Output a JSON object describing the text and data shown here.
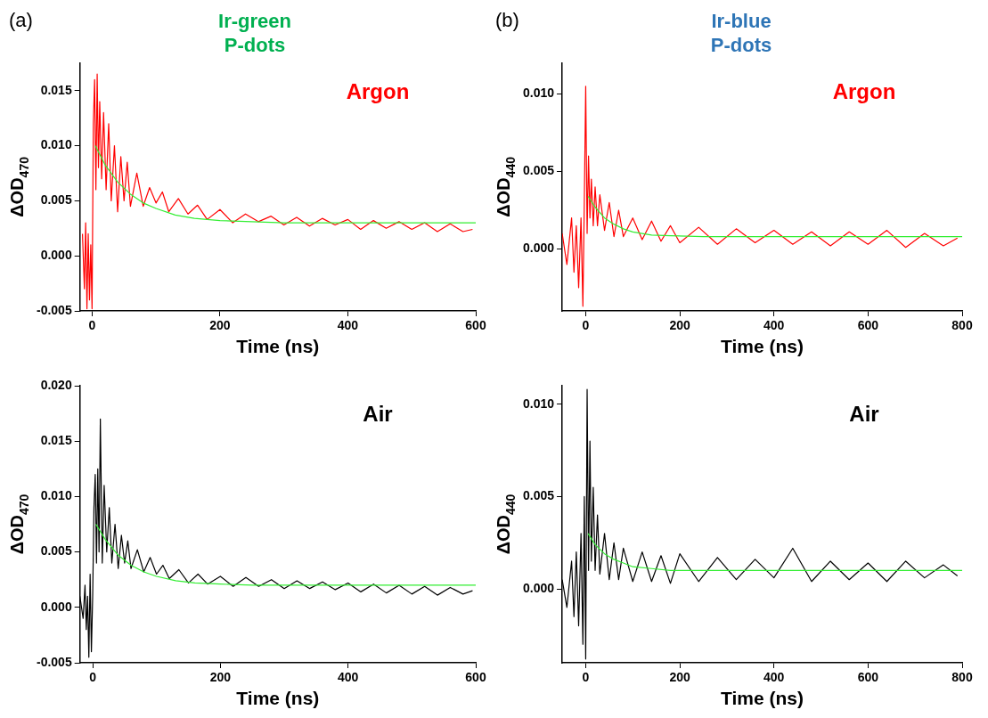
{
  "chart_data": [
    {
      "type": "line",
      "title": "Ir-green\nP-dots",
      "xlabel": "Time (ns)",
      "ylabel": "ΔOD$_{470}$",
      "annotations": [
        "(a)",
        "Argon"
      ],
      "marker": "none",
      "line_style": "solid",
      "xlim": [
        -19,
        600
      ],
      "xticks": [
        0,
        200,
        400,
        600
      ],
      "ylim": [
        -0.005,
        0.0175
      ],
      "yticks": [
        {
          "value": -0.005,
          "label": "-0.005"
        },
        {
          "value": 0,
          "label": "0.000"
        },
        {
          "value": 0.005,
          "label": "0.005"
        },
        {
          "value": 0.01,
          "label": "0.010"
        },
        {
          "value": 0.015,
          "label": "0.015"
        }
      ],
      "series": [
        {
          "color": "#ff0000",
          "x": [
            -15,
            -12,
            -10,
            -8,
            -6,
            -4,
            -2,
            0,
            2,
            4,
            6,
            8,
            10,
            12,
            15,
            18,
            22,
            26,
            30,
            35,
            40,
            45,
            50,
            55,
            60,
            70,
            80,
            90,
            100,
            110,
            120,
            135,
            150,
            165,
            180,
            200,
            220,
            240,
            260,
            280,
            300,
            320,
            340,
            360,
            380,
            400,
            420,
            440,
            460,
            480,
            500,
            520,
            540,
            560,
            580,
            595
          ],
          "values": [
            0.002,
            -0.003,
            0.003,
            -0.0048,
            0.002,
            -0.004,
            0.001,
            -0.0048,
            0.012,
            0.016,
            0.006,
            0.0165,
            0.008,
            0.014,
            0.007,
            0.013,
            0.006,
            0.012,
            0.005,
            0.01,
            0.004,
            0.009,
            0.005,
            0.0085,
            0.0045,
            0.0075,
            0.0045,
            0.0062,
            0.0048,
            0.0058,
            0.004,
            0.0052,
            0.0038,
            0.0046,
            0.0033,
            0.0042,
            0.003,
            0.0038,
            0.0031,
            0.0036,
            0.0028,
            0.0035,
            0.0027,
            0.0034,
            0.0028,
            0.0033,
            0.0024,
            0.0032,
            0.0025,
            0.0031,
            0.0024,
            0.003,
            0.0022,
            0.0029,
            0.0022,
            0.0024
          ]
        },
        {
          "color": "#33ee33",
          "x": [
            5,
            20,
            40,
            60,
            80,
            100,
            130,
            160,
            200,
            250,
            300,
            400,
            500,
            600
          ],
          "values": [
            0.01,
            0.0083,
            0.0067,
            0.0056,
            0.0048,
            0.0043,
            0.0037,
            0.0034,
            0.0032,
            0.0031,
            0.003,
            0.003,
            0.003,
            0.003
          ]
        }
      ]
    },
    {
      "type": "line",
      "title": "Ir-blue\nP-dots",
      "xlabel": "Time (ns)",
      "ylabel": "ΔOD$_{440}$",
      "annotations": [
        "(b)",
        "Argon"
      ],
      "marker": "none",
      "line_style": "solid",
      "xlim": [
        -50,
        800
      ],
      "xticks": [
        0,
        200,
        400,
        600,
        800
      ],
      "ylim": [
        -0.004,
        0.012
      ],
      "yticks": [
        {
          "value": 0,
          "label": "0.000"
        },
        {
          "value": 0.005,
          "label": "0.005"
        },
        {
          "value": 0.01,
          "label": "0.010"
        }
      ],
      "series": [
        {
          "color": "#ff0000",
          "x": [
            -50,
            -40,
            -30,
            -25,
            -20,
            -15,
            -10,
            -6,
            -3,
            0,
            3,
            6,
            9,
            12,
            16,
            20,
            25,
            30,
            40,
            50,
            60,
            70,
            80,
            100,
            120,
            140,
            160,
            180,
            200,
            240,
            280,
            320,
            360,
            400,
            440,
            480,
            520,
            560,
            600,
            640,
            680,
            720,
            760,
            790
          ],
          "values": [
            0.001,
            -0.001,
            0.002,
            -0.0015,
            0.0015,
            -0.0025,
            0.002,
            -0.0037,
            0.003,
            0.0105,
            0.001,
            0.006,
            0.002,
            0.0045,
            0.0015,
            0.004,
            0.0015,
            0.0035,
            0.0012,
            0.003,
            0.0008,
            0.0025,
            0.0008,
            0.002,
            0.0006,
            0.0018,
            0.0005,
            0.0015,
            0.0004,
            0.0014,
            0.0003,
            0.0013,
            0.0004,
            0.0012,
            0.0003,
            0.0011,
            0.0002,
            0.0011,
            0.0003,
            0.0012,
            0.0001,
            0.001,
            0.0002,
            0.0007
          ]
        },
        {
          "color": "#33ee33",
          "x": [
            5,
            20,
            40,
            60,
            80,
            100,
            140,
            180,
            250,
            400,
            600,
            800
          ],
          "values": [
            0.0034,
            0.0027,
            0.002,
            0.0016,
            0.0013,
            0.0011,
            0.0009,
            0.00085,
            0.0008,
            0.0008,
            0.0008,
            0.0008
          ]
        }
      ]
    },
    {
      "type": "line",
      "xlabel": "Time (ns)",
      "ylabel": "ΔOD$_{470}$",
      "annotations": [
        "Air"
      ],
      "marker": "none",
      "line_style": "solid",
      "xlim": [
        -20,
        600
      ],
      "xticks": [
        0,
        200,
        400,
        600
      ],
      "ylim": [
        -0.005,
        0.02
      ],
      "yticks": [
        {
          "value": -0.005,
          "label": "-0.005"
        },
        {
          "value": 0,
          "label": "0.000"
        },
        {
          "value": 0.005,
          "label": "0.005"
        },
        {
          "value": 0.01,
          "label": "0.010"
        },
        {
          "value": 0.015,
          "label": "0.015"
        },
        {
          "value": 0.02,
          "label": "0.020"
        }
      ],
      "series": [
        {
          "color": "#000000",
          "x": [
            -20,
            -15,
            -12,
            -10,
            -8,
            -6,
            -4,
            -2,
            0,
            2,
            4,
            6,
            8,
            10,
            12,
            15,
            18,
            22,
            26,
            30,
            35,
            40,
            45,
            50,
            55,
            60,
            70,
            80,
            90,
            100,
            110,
            120,
            135,
            150,
            165,
            180,
            200,
            220,
            240,
            260,
            280,
            300,
            320,
            340,
            360,
            380,
            400,
            420,
            440,
            460,
            480,
            500,
            520,
            540,
            560,
            580,
            595
          ],
          "values": [
            0.001,
            -0.001,
            0.002,
            -0.002,
            0.001,
            -0.0045,
            0.003,
            -0.004,
            0.001,
            0.009,
            0.012,
            0.004,
            0.0125,
            0.005,
            0.017,
            0.004,
            0.011,
            0.005,
            0.009,
            0.004,
            0.0075,
            0.0035,
            0.0065,
            0.004,
            0.006,
            0.0035,
            0.0052,
            0.0032,
            0.0045,
            0.003,
            0.0038,
            0.0026,
            0.0034,
            0.0022,
            0.003,
            0.0021,
            0.0028,
            0.0019,
            0.0027,
            0.0019,
            0.0025,
            0.0017,
            0.0024,
            0.0017,
            0.0023,
            0.0016,
            0.0022,
            0.0014,
            0.0021,
            0.0013,
            0.002,
            0.0012,
            0.0019,
            0.0011,
            0.0018,
            0.0012,
            0.0015
          ]
        },
        {
          "color": "#33ee33",
          "x": [
            5,
            20,
            40,
            60,
            80,
            100,
            130,
            160,
            200,
            250,
            300,
            400,
            500,
            600
          ],
          "values": [
            0.0075,
            0.0061,
            0.0047,
            0.0038,
            0.0032,
            0.0028,
            0.0024,
            0.0022,
            0.0021,
            0.002,
            0.002,
            0.002,
            0.002,
            0.002
          ]
        }
      ]
    },
    {
      "type": "line",
      "xlabel": "Time (ns)",
      "ylabel": "ΔOD$_{440}$",
      "annotations": [
        "Air"
      ],
      "marker": "none",
      "line_style": "solid",
      "xlim": [
        -50,
        800
      ],
      "xticks": [
        0,
        200,
        400,
        600,
        800
      ],
      "ylim": [
        -0.004,
        0.011
      ],
      "yticks": [
        {
          "value": 0,
          "label": "0.000"
        },
        {
          "value": 0.005,
          "label": "0.005"
        },
        {
          "value": 0.01,
          "label": "0.010"
        }
      ],
      "series": [
        {
          "color": "#000000",
          "x": [
            -50,
            -40,
            -30,
            -25,
            -20,
            -15,
            -10,
            -6,
            -3,
            0,
            3,
            6,
            9,
            12,
            16,
            20,
            25,
            30,
            40,
            50,
            60,
            70,
            80,
            100,
            120,
            140,
            160,
            180,
            200,
            240,
            280,
            320,
            360,
            400,
            440,
            480,
            520,
            560,
            600,
            640,
            680,
            720,
            760,
            790
          ],
          "values": [
            0.0005,
            -0.001,
            0.0015,
            -0.0015,
            0.002,
            -0.002,
            0.003,
            -0.003,
            0.005,
            -0.0038,
            0.0108,
            0.001,
            0.008,
            0.0015,
            0.0055,
            0.001,
            0.004,
            0.0008,
            0.003,
            0.0005,
            0.0025,
            0.0005,
            0.0022,
            0.0004,
            0.002,
            0.0004,
            0.0018,
            0.0003,
            0.0019,
            0.0004,
            0.0017,
            0.0005,
            0.0016,
            0.0006,
            0.0022,
            0.0004,
            0.0015,
            0.0005,
            0.0014,
            0.0004,
            0.0015,
            0.0006,
            0.0013,
            0.0007
          ]
        },
        {
          "color": "#33ee33",
          "x": [
            5,
            20,
            40,
            60,
            80,
            100,
            140,
            180,
            250,
            400,
            600,
            800
          ],
          "values": [
            0.003,
            0.0024,
            0.0019,
            0.0016,
            0.0014,
            0.0012,
            0.0011,
            0.001,
            0.001,
            0.001,
            0.001,
            0.001
          ]
        }
      ]
    }
  ]
}
